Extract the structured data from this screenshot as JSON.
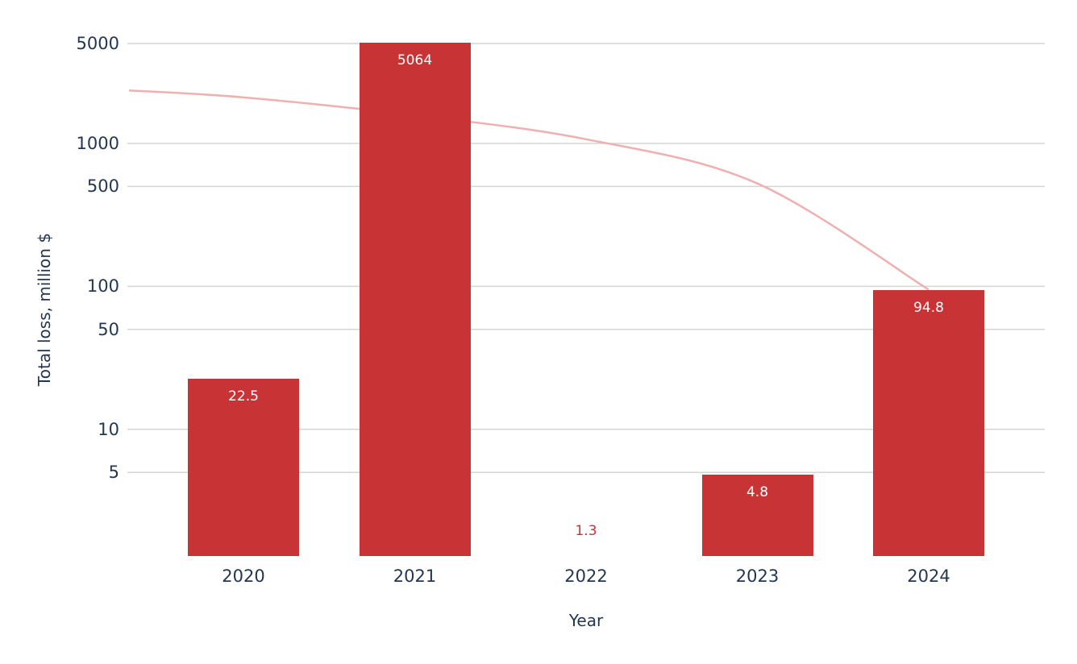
{
  "chart_data": {
    "type": "bar",
    "title": "",
    "xlabel": "Year",
    "ylabel": "Total loss, million $",
    "categories": [
      "2020",
      "2021",
      "2022",
      "2023",
      "2024"
    ],
    "values": [
      22.5,
      5064,
      1.3,
      4.8,
      94.8
    ],
    "bar_labels": [
      "22.5",
      "5064",
      "1.3",
      "4.8",
      "94.8"
    ],
    "outside_label_index": 2,
    "yscale": "log",
    "ylim": [
      1.3,
      7000
    ],
    "yticks": [
      5000,
      1000,
      500,
      100,
      50,
      10,
      5
    ],
    "ytick_labels": [
      "5000",
      "1000",
      "500",
      "100",
      "50",
      "10",
      "5"
    ],
    "grid": true,
    "legend_position": "none",
    "trend_line": {
      "description": "smooth pale-pink curve descending from the left plot edge to the top of the 2024 bar, drawn behind the bars",
      "edge_value_at_plot_left": 2350,
      "values_at_years": [
        2100,
        1575,
        1070,
        525,
        94.8
      ]
    }
  },
  "style": {
    "bar_color": "#c83436",
    "line_color": "#efb0b0",
    "grid_color": "#d5d5d5",
    "text_color": "#233850",
    "bar_label_color": "#ffffff",
    "outside_label_color": "#c83436",
    "background": "#ffffff"
  }
}
